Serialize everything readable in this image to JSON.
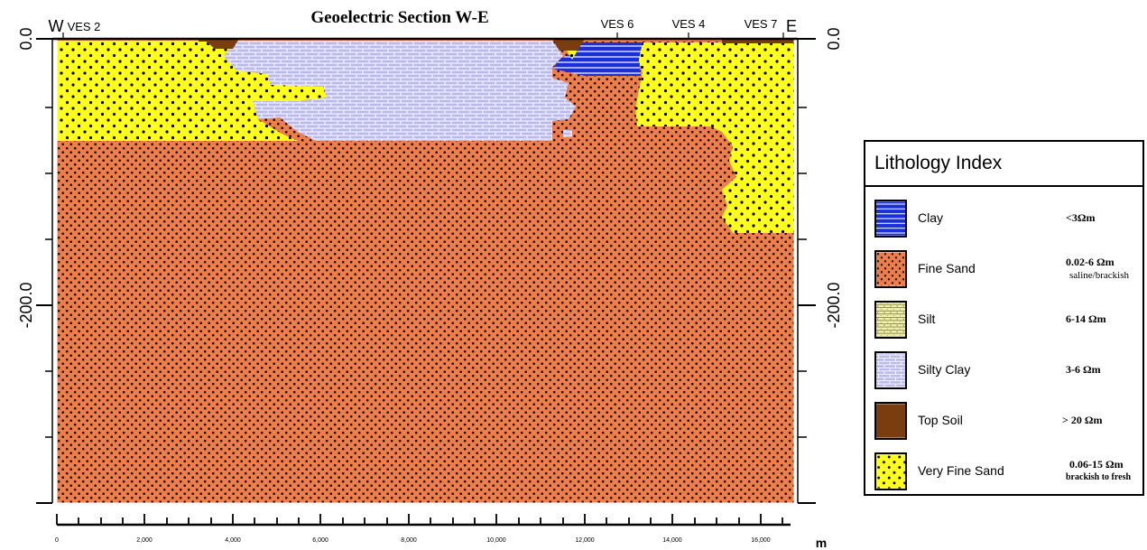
{
  "title": "Geoelectric  Section W-E",
  "west_label": "W",
  "east_label": "E",
  "ves_labels": [
    "VES 2",
    "VES 6",
    "VES 4",
    "VES 7"
  ],
  "depth_labels": [
    "0.0",
    "-200.0"
  ],
  "distance_ticks": [
    "0",
    "2,000",
    "4,000",
    "6,000",
    "8,000",
    "10,000",
    "12,000",
    "14,000",
    "16,000"
  ],
  "distance_unit": "m",
  "legend": {
    "title": "Lithology Index",
    "items": [
      {
        "key": "clay",
        "label": "Clay",
        "resistivity": "<3Ωm",
        "note": ""
      },
      {
        "key": "fine_sand",
        "label": "Fine Sand",
        "resistivity": "0.02-6 Ωm",
        "note": "saline/brackish"
      },
      {
        "key": "silt",
        "label": "Silt",
        "resistivity": "6-14 Ωm",
        "note": ""
      },
      {
        "key": "silty_clay",
        "label": "Silty Clay",
        "resistivity": "3-6 Ωm",
        "note": ""
      },
      {
        "key": "top_soil",
        "label": "Top Soil",
        "resistivity": "> 20 Ωm",
        "note": ""
      },
      {
        "key": "very_fine_sand",
        "label": "Very Fine Sand",
        "resistivity": "0.06-15 Ωm",
        "note": "brackish to fresh"
      }
    ]
  },
  "colors": {
    "clay": "#1a2fd6",
    "fine_sand": "#ee7e4c",
    "silt": "#f2f0b0",
    "silty_clay": "#b9b9f0",
    "top_soil": "#7a3d10",
    "very_fine_sand": "#ffff1e"
  }
}
